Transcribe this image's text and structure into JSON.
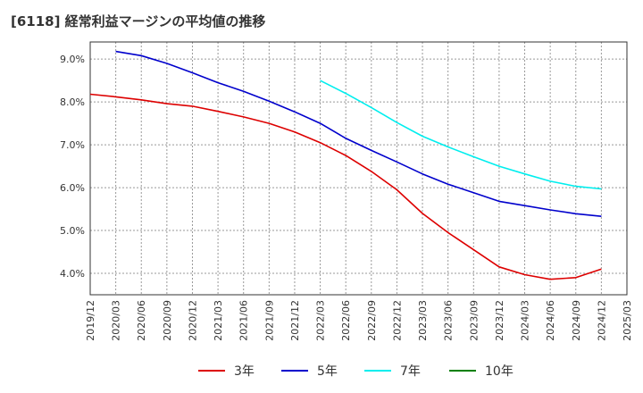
{
  "title": "[6118]  経常利益マージンの平均値の推移",
  "chart_data": {
    "type": "line",
    "x": [
      "2019/12",
      "2020/03",
      "2020/06",
      "2020/09",
      "2020/12",
      "2021/03",
      "2021/06",
      "2021/09",
      "2021/12",
      "2022/03",
      "2022/06",
      "2022/09",
      "2022/12",
      "2023/03",
      "2023/06",
      "2023/09",
      "2023/12",
      "2024/03",
      "2024/06",
      "2024/09",
      "2024/12",
      "2025/03"
    ],
    "y_ticks": [
      "4.0%",
      "5.0%",
      "6.0%",
      "7.0%",
      "8.0%",
      "9.0%"
    ],
    "ylim": [
      3.5,
      9.4
    ],
    "grid": true,
    "legend_position": "bottom",
    "series": [
      {
        "name": "3年",
        "color": "#dd0000",
        "values": [
          8.18,
          8.12,
          8.05,
          7.96,
          7.9,
          7.78,
          7.65,
          7.5,
          7.3,
          7.05,
          6.75,
          6.38,
          5.95,
          5.4,
          4.95,
          4.55,
          4.15,
          3.97,
          3.86,
          3.9,
          4.1,
          null
        ]
      },
      {
        "name": "5年",
        "color": "#0000cc",
        "values": [
          null,
          9.18,
          9.08,
          8.9,
          8.68,
          8.45,
          8.25,
          8.02,
          7.77,
          7.5,
          7.15,
          6.87,
          6.6,
          6.32,
          6.08,
          5.88,
          5.68,
          5.58,
          5.48,
          5.39,
          5.33,
          null
        ]
      },
      {
        "name": "7年",
        "color": "#00eeee",
        "values": [
          null,
          null,
          null,
          null,
          null,
          null,
          null,
          null,
          null,
          8.5,
          8.2,
          7.87,
          7.52,
          7.2,
          6.95,
          6.72,
          6.5,
          6.32,
          6.15,
          6.03,
          5.97,
          null
        ]
      },
      {
        "name": "10年",
        "color": "#008000",
        "values": [
          null,
          null,
          null,
          null,
          null,
          null,
          null,
          null,
          null,
          null,
          null,
          null,
          null,
          null,
          null,
          null,
          null,
          null,
          null,
          null,
          null,
          null
        ]
      }
    ]
  }
}
